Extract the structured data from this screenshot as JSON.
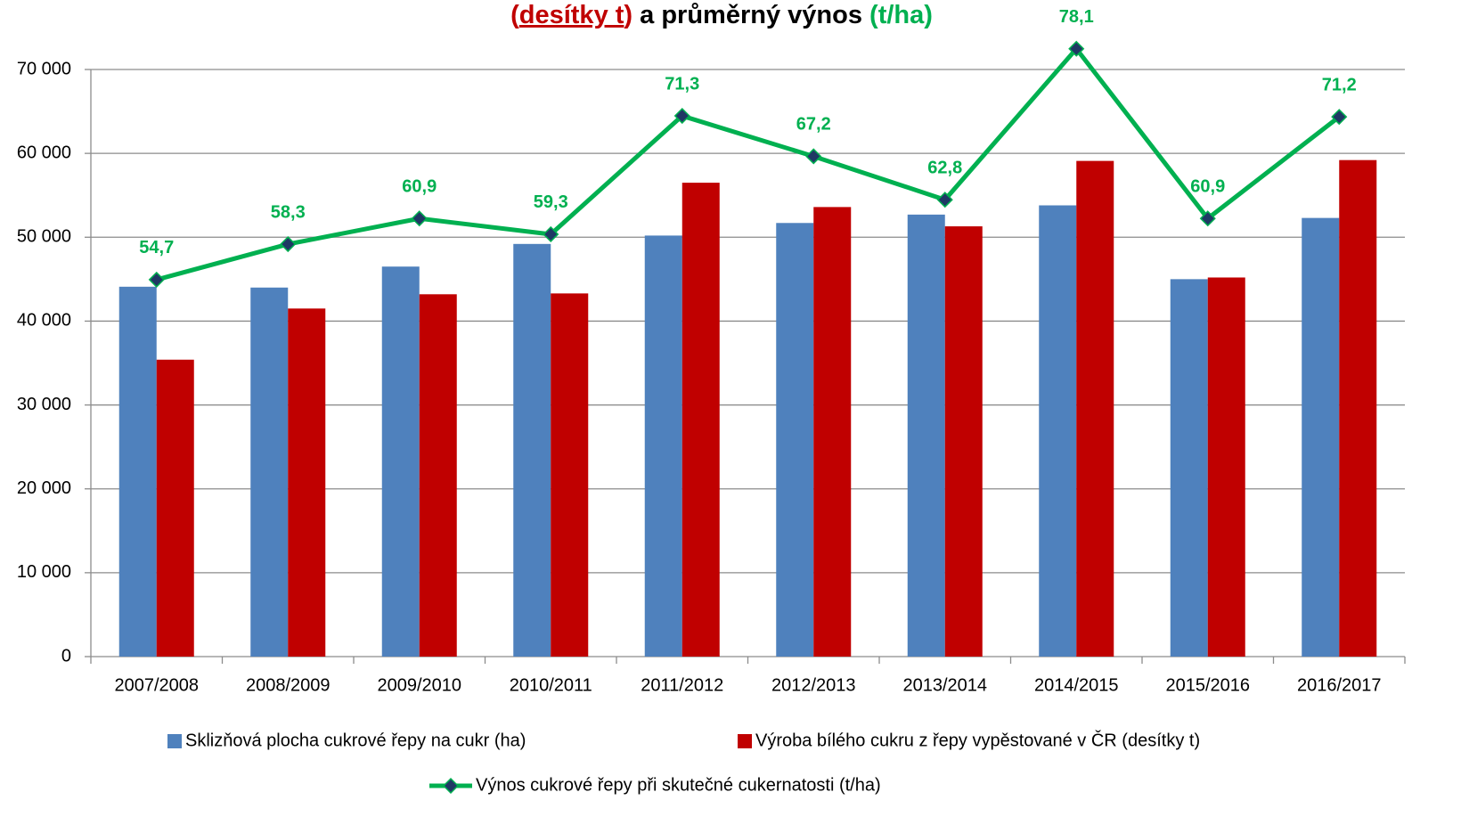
{
  "chart_data": {
    "type": "bar_line",
    "title_parts": [
      "(",
      "desítky t",
      ")",
      " a průměrný výnos ",
      "(t/ha)"
    ],
    "categories": [
      "2007/2008",
      "2008/2009",
      "2009/2010",
      "2010/2011",
      "2011/2012",
      "2012/2013",
      "2013/2014",
      "2014/2015",
      "2015/2016",
      "2016/2017"
    ],
    "series": [
      {
        "name": "Sklizňová plocha cukrové řepy na cukr (ha)",
        "type": "bar",
        "color": "#4f81bd",
        "values": [
          44100,
          44000,
          46500,
          49200,
          50200,
          51700,
          52700,
          53800,
          45000,
          52300
        ]
      },
      {
        "name": "Výroba bílého cukru z řepy vypěstované v ČR (desítky t)",
        "type": "bar",
        "color": "#c00000",
        "values": [
          35400,
          41500,
          43200,
          43300,
          56500,
          53600,
          51300,
          59100,
          45200,
          59200
        ]
      },
      {
        "name": "Výnos cukrové řepy při skutečné cukernatosti (t/ha)",
        "type": "line",
        "axis": "y2",
        "color": "#00b050",
        "marker_color": "#1f3864",
        "values": [
          54.7,
          58.3,
          60.9,
          59.3,
          71.3,
          67.2,
          62.8,
          78.1,
          60.9,
          71.2
        ],
        "value_labels": [
          "54,7",
          "58,3",
          "60,9",
          "59,3",
          "71,3",
          "67,2",
          "62,8",
          "78,1",
          "60,9",
          "71,2"
        ]
      }
    ],
    "ylim": [
      0,
      70000
    ],
    "yticks": [
      {
        "value": 0,
        "label": "0"
      },
      {
        "value": 10000,
        "label": "10 000"
      },
      {
        "value": 20000,
        "label": "20 000"
      },
      {
        "value": 30000,
        "label": "30 000"
      },
      {
        "value": 40000,
        "label": "40 000"
      },
      {
        "value": 50000,
        "label": "50 000"
      },
      {
        "value": 60000,
        "label": "60 000"
      },
      {
        "value": 70000,
        "label": "70 000"
      }
    ],
    "y2lim": [
      16.5,
      76
    ],
    "grid": true
  }
}
